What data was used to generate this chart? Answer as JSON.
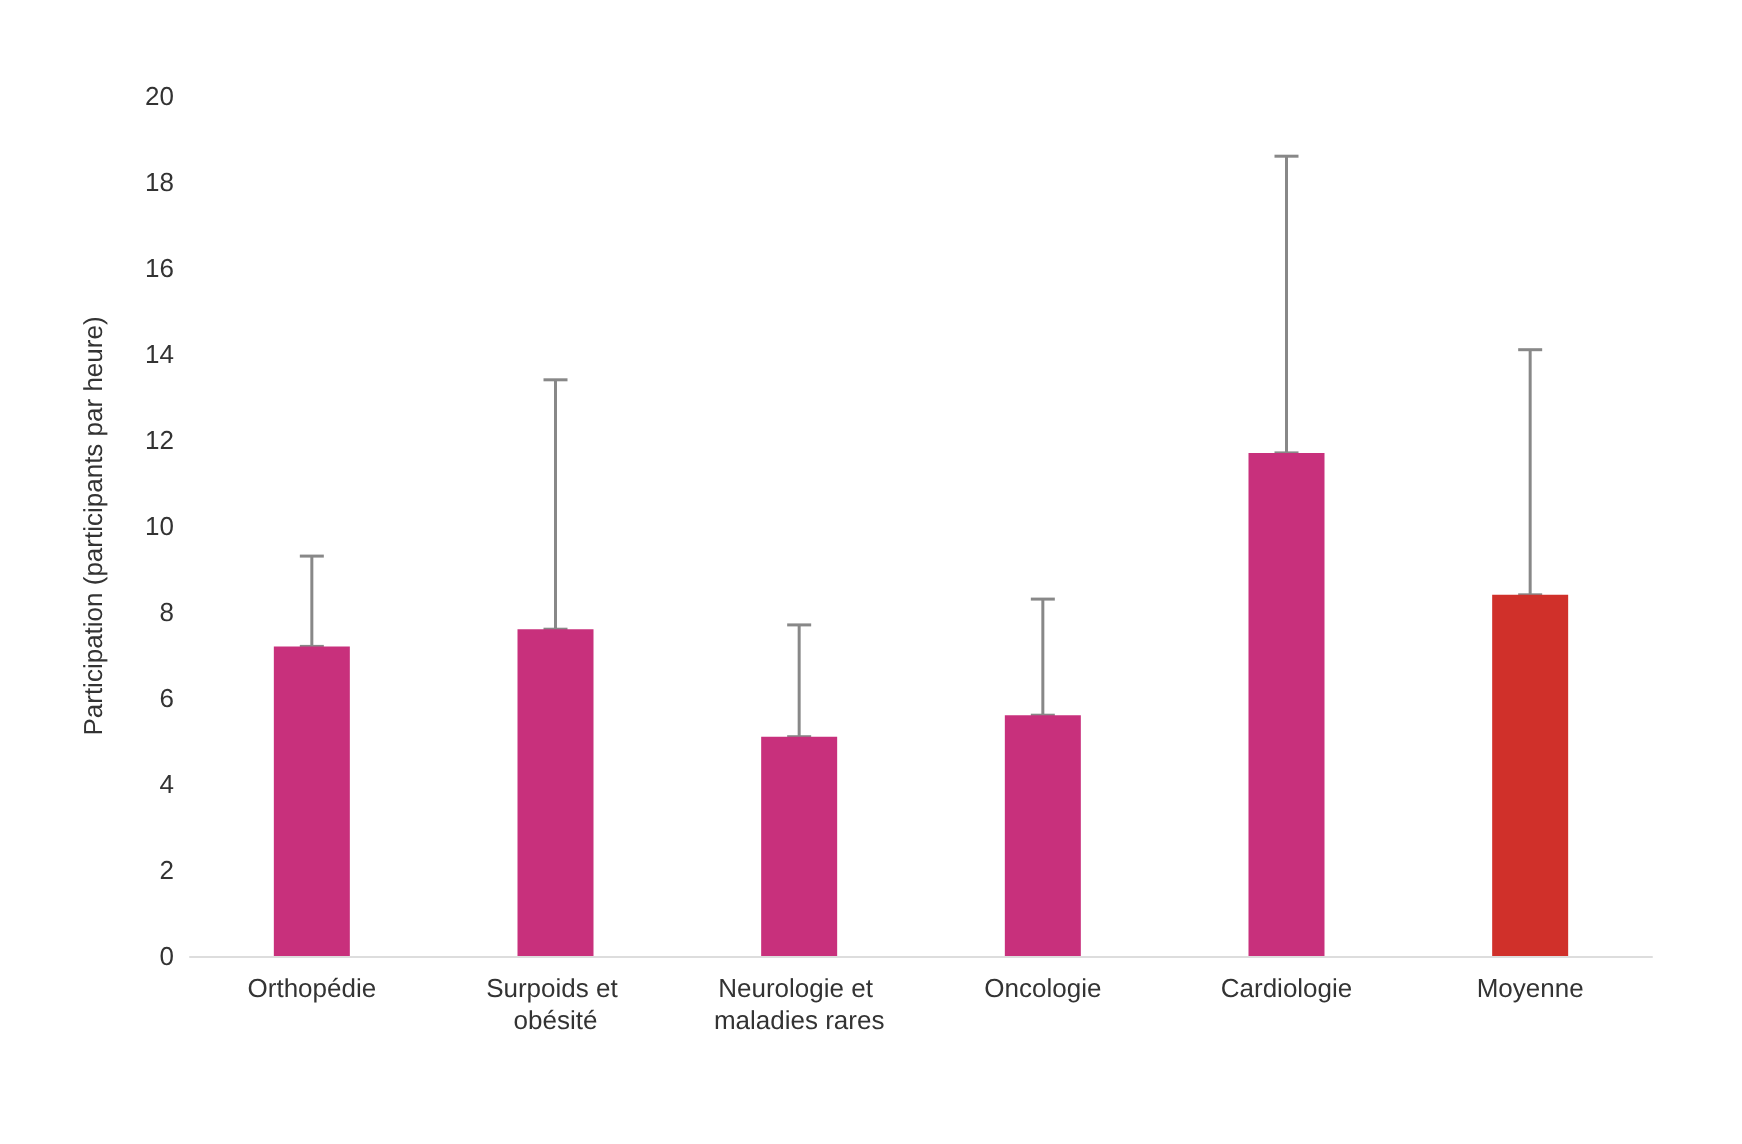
{
  "chart_data": {
    "type": "bar",
    "ylabel": "Participation (participants par heure)",
    "categories": [
      "Orthopédie",
      "Surpoids et obésité",
      "Neurologie et maladies rares",
      "Oncologie",
      "Cardiologie",
      "Moyenne"
    ],
    "values": [
      7.2,
      7.6,
      5.1,
      5.6,
      11.7,
      8.4
    ],
    "colors": [
      "#c8307c",
      "#c8307c",
      "#c8307c",
      "#c8307c",
      "#c8307c",
      "#d0302a"
    ],
    "errors": [
      [
        7.2,
        9.3
      ],
      [
        7.6,
        13.4
      ],
      [
        5.1,
        7.7
      ],
      [
        5.6,
        8.3
      ],
      [
        11.7,
        18.6
      ],
      [
        8.4,
        14.1
      ]
    ],
    "ylim": [
      0,
      20
    ],
    "yticks": [
      0,
      2,
      4,
      6,
      8,
      10,
      12,
      14,
      16,
      18,
      20
    ],
    "grid": false
  }
}
